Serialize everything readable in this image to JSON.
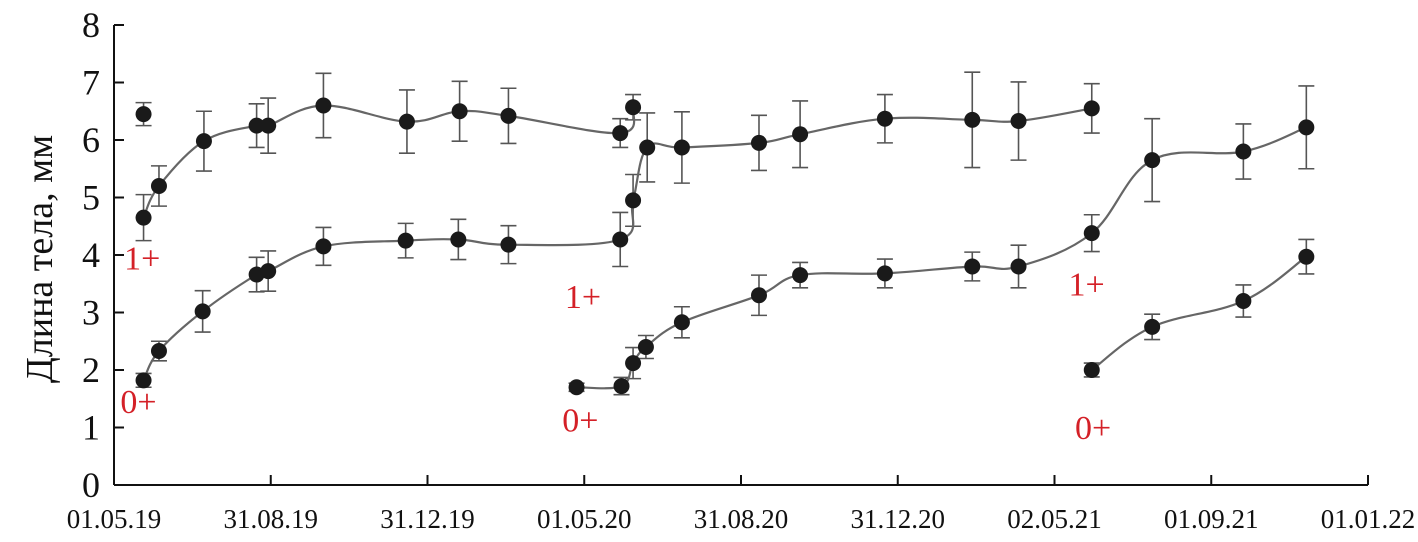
{
  "chart_data": {
    "type": "line",
    "ylabel": "Длина тела, мм",
    "xlabel": "",
    "ylim": [
      0,
      8
    ],
    "yticks": [
      0,
      1,
      2,
      3,
      4,
      5,
      6,
      7,
      8
    ],
    "xlim": [
      "2019-05-01",
      "2022-01-01"
    ],
    "xticks": [
      {
        "date": "2019-05-01",
        "label": "01.05.19"
      },
      {
        "date": "2019-08-31",
        "label": "31.08.19"
      },
      {
        "date": "2019-12-31",
        "label": "31.12.19"
      },
      {
        "date": "2020-05-01",
        "label": "01.05.20"
      },
      {
        "date": "2020-08-31",
        "label": "31.08.20"
      },
      {
        "date": "2020-12-31",
        "label": "31.12.20"
      },
      {
        "date": "2021-05-02",
        "label": "02.05.21"
      },
      {
        "date": "2021-09-01",
        "label": "01.09.21"
      },
      {
        "date": "2022-01-01",
        "label": "01.01.22"
      }
    ],
    "grid": false,
    "colors": {
      "axis": "#111111",
      "line": "#666666",
      "point": "#1a1a1a",
      "errorbar": "#555555",
      "annotation": "#d42027"
    },
    "series": [
      {
        "points": [
          {
            "x": "2019-05-24",
            "y": 6.45,
            "err": 0.2
          }
        ]
      },
      {
        "points": [
          {
            "x": "2019-05-24",
            "y": 4.65,
            "err": 0.4
          },
          {
            "x": "2019-06-05",
            "y": 5.2,
            "err": 0.35
          },
          {
            "x": "2019-07-10",
            "y": 5.98,
            "err": 0.52
          },
          {
            "x": "2019-08-20",
            "y": 6.25,
            "err": 0.38
          },
          {
            "x": "2019-08-29",
            "y": 6.25,
            "err": 0.48
          },
          {
            "x": "2019-10-11",
            "y": 6.6,
            "err": 0.56
          },
          {
            "x": "2019-12-15",
            "y": 6.32,
            "err": 0.55
          },
          {
            "x": "2020-01-25",
            "y": 6.5,
            "err": 0.52
          },
          {
            "x": "2020-03-03",
            "y": 6.42,
            "err": 0.48
          },
          {
            "x": "2020-05-29",
            "y": 6.12,
            "err": 0.25
          },
          {
            "x": "2020-06-08",
            "y": 6.57,
            "err": 0.22
          }
        ]
      },
      {
        "points": [
          {
            "x": "2019-05-24",
            "y": 1.82,
            "err": 0.12
          },
          {
            "x": "2019-06-05",
            "y": 2.33,
            "err": 0.17
          },
          {
            "x": "2019-07-09",
            "y": 3.02,
            "err": 0.36
          },
          {
            "x": "2019-08-20",
            "y": 3.66,
            "err": 0.3
          },
          {
            "x": "2019-08-29",
            "y": 3.72,
            "err": 0.35
          },
          {
            "x": "2019-10-11",
            "y": 4.15,
            "err": 0.33
          },
          {
            "x": "2019-12-14",
            "y": 4.25,
            "err": 0.3
          },
          {
            "x": "2020-01-24",
            "y": 4.27,
            "err": 0.35
          },
          {
            "x": "2020-03-03",
            "y": 4.18,
            "err": 0.33
          },
          {
            "x": "2020-05-29",
            "y": 4.27,
            "err": 0.47
          },
          {
            "x": "2020-06-08",
            "y": 4.95,
            "err": 0.45
          },
          {
            "x": "2020-06-19",
            "y": 5.87,
            "err": 0.6
          },
          {
            "x": "2020-07-16",
            "y": 5.87,
            "err": 0.62
          },
          {
            "x": "2020-09-14",
            "y": 5.95,
            "err": 0.48
          },
          {
            "x": "2020-10-16",
            "y": 6.1,
            "err": 0.58
          },
          {
            "x": "2020-12-21",
            "y": 6.37,
            "err": 0.42
          },
          {
            "x": "2021-02-27",
            "y": 6.35,
            "err": 0.83
          },
          {
            "x": "2021-04-04",
            "y": 6.33,
            "err": 0.68
          },
          {
            "x": "2021-05-31",
            "y": 6.55,
            "err": 0.43
          }
        ]
      },
      {
        "points": [
          {
            "x": "2020-04-25",
            "y": 1.7,
            "err": 0.07
          },
          {
            "x": "2020-05-30",
            "y": 1.72,
            "err": 0.15
          },
          {
            "x": "2020-06-08",
            "y": 2.12,
            "err": 0.27
          },
          {
            "x": "2020-06-18",
            "y": 2.4,
            "err": 0.2
          },
          {
            "x": "2020-07-16",
            "y": 2.83,
            "err": 0.27
          },
          {
            "x": "2020-09-14",
            "y": 3.3,
            "err": 0.35
          },
          {
            "x": "2020-10-16",
            "y": 3.65,
            "err": 0.22
          },
          {
            "x": "2020-12-21",
            "y": 3.68,
            "err": 0.25
          },
          {
            "x": "2021-02-27",
            "y": 3.8,
            "err": 0.25
          },
          {
            "x": "2021-04-04",
            "y": 3.8,
            "err": 0.37
          },
          {
            "x": "2021-05-31",
            "y": 4.38,
            "err": 0.32
          },
          {
            "x": "2021-07-17",
            "y": 5.65,
            "err": 0.72
          },
          {
            "x": "2021-09-26",
            "y": 5.8,
            "err": 0.48
          },
          {
            "x": "2021-11-14",
            "y": 6.22,
            "err": 0.72
          }
        ]
      },
      {
        "points": [
          {
            "x": "2021-05-31",
            "y": 2.0,
            "err": 0.12
          },
          {
            "x": "2021-07-17",
            "y": 2.75,
            "err": 0.22
          },
          {
            "x": "2021-09-26",
            "y": 3.2,
            "err": 0.28
          },
          {
            "x": "2021-11-14",
            "y": 3.97,
            "err": 0.3
          }
        ]
      }
    ],
    "annotations": [
      {
        "text": "1+",
        "x": "2019-05-23",
        "y": 3.75
      },
      {
        "text": "0+",
        "x": "2019-05-20",
        "y": 1.25
      },
      {
        "text": "1+",
        "x": "2020-04-30",
        "y": 3.08
      },
      {
        "text": "0+",
        "x": "2020-04-28",
        "y": 0.93
      },
      {
        "text": "1+",
        "x": "2021-05-27",
        "y": 3.3
      },
      {
        "text": "0+",
        "x": "2021-06-01",
        "y": 0.8
      }
    ]
  }
}
